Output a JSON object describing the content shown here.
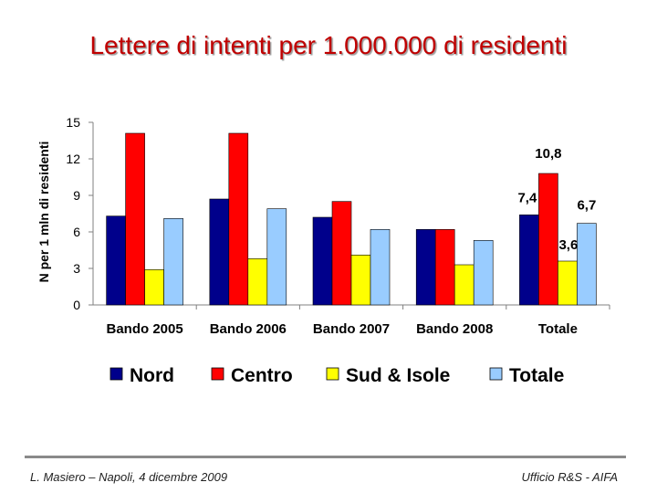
{
  "slide": {
    "title": "Lettere di intenti per 1.000.000 di residenti",
    "footer_left": "L. Masiero – Napoli, 4 dicembre 2009",
    "footer_right": "Ufficio R&S - AIFA"
  },
  "chart_data": {
    "type": "bar",
    "title": "",
    "xlabel": "",
    "ylabel": "N per 1 mln di residenti",
    "ylim": [
      0,
      15
    ],
    "yticks": [
      "0",
      "3",
      "6",
      "9",
      "12",
      "15"
    ],
    "categories": [
      "Bando 2005",
      "Bando 2006",
      "Bando 2007",
      "Bando 2008",
      "Totale"
    ],
    "series": [
      {
        "name": "Nord",
        "color": "#00008b",
        "values": [
          7.3,
          8.7,
          7.2,
          6.2,
          7.4
        ]
      },
      {
        "name": "Centro",
        "color": "#ff0000",
        "values": [
          14.1,
          14.1,
          8.5,
          6.2,
          10.8
        ]
      },
      {
        "name": "Sud & Isole",
        "color": "#ffff00",
        "values": [
          2.9,
          3.8,
          4.1,
          3.3,
          3.6
        ]
      },
      {
        "name": "Totale",
        "color": "#99ccff",
        "values": [
          7.1,
          7.9,
          6.2,
          5.3,
          6.7
        ]
      }
    ],
    "data_labels": [
      {
        "category": "Totale",
        "series": "Nord",
        "text": "7,4"
      },
      {
        "category": "Totale",
        "series": "Centro",
        "text": "10,8"
      },
      {
        "category": "Totale",
        "series": "Sud & Isole",
        "text": "3,6"
      },
      {
        "category": "Totale",
        "series": "Totale",
        "text": "6,7"
      }
    ],
    "legend_position": "bottom",
    "grid": false
  }
}
